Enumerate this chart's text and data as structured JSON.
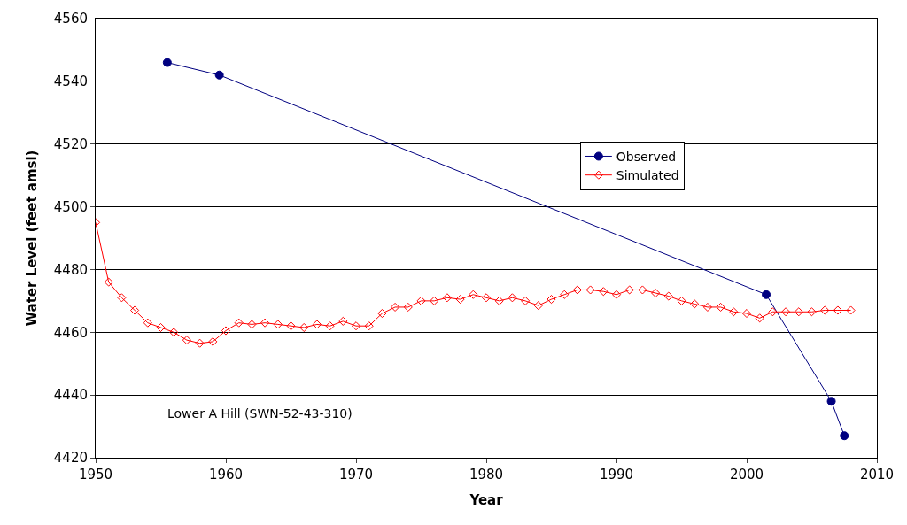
{
  "chart_data": {
    "type": "line",
    "xlabel": "Year",
    "ylabel": "Water Level (feet amsl)",
    "xlim": [
      1950,
      2010
    ],
    "xticks": [
      1950,
      1960,
      1970,
      1980,
      1990,
      2000,
      2010
    ],
    "ylim": [
      4420,
      4560
    ],
    "yticks": [
      4420,
      4440,
      4460,
      4480,
      4500,
      4520,
      4540,
      4560
    ],
    "grid": "y",
    "legend": "top right",
    "annotations": [
      "Lower A Hill (SWN-52-43-310)"
    ],
    "series": [
      {
        "name": "Observed",
        "color": "#000080",
        "marker": "circle",
        "x": [
          1955.5,
          1959.5,
          2001.5,
          2006.5,
          2007.5
        ],
        "values": [
          4546,
          4542,
          4472,
          4438,
          4427
        ]
      },
      {
        "name": "Simulated",
        "color": "#ff0000",
        "marker": "diamond",
        "x": [
          1950,
          1951,
          1952,
          1953,
          1954,
          1955,
          1956,
          1957,
          1958,
          1959,
          1960,
          1961,
          1962,
          1963,
          1964,
          1965,
          1966,
          1967,
          1968,
          1969,
          1970,
          1971,
          1972,
          1973,
          1974,
          1975,
          1976,
          1977,
          1978,
          1979,
          1980,
          1981,
          1982,
          1983,
          1984,
          1985,
          1986,
          1987,
          1988,
          1989,
          1990,
          1991,
          1992,
          1993,
          1994,
          1995,
          1996,
          1997,
          1998,
          1999,
          2000,
          2001,
          2002,
          2003,
          2004,
          2005,
          2006,
          2007,
          2008
        ],
        "values": [
          4495,
          4476,
          4471,
          4467,
          4463,
          4461.5,
          4460,
          4457.5,
          4456.5,
          4457,
          4460.5,
          4463,
          4462.5,
          4463,
          4462.5,
          4462,
          4461.5,
          4462.5,
          4462,
          4463.5,
          4462,
          4462,
          4466,
          4468,
          4468,
          4470,
          4470,
          4471,
          4470.5,
          4472,
          4471,
          4470,
          4471,
          4470,
          4468.5,
          4470.5,
          4472,
          4473.5,
          4473.5,
          4473,
          4472,
          4473.5,
          4473.5,
          4472.5,
          4471.5,
          4470,
          4469,
          4468,
          4468,
          4466.5,
          4466,
          4464.5,
          4466.5,
          4466.5,
          4466.5,
          4466.5,
          4467,
          4467,
          4467
        ]
      }
    ]
  }
}
